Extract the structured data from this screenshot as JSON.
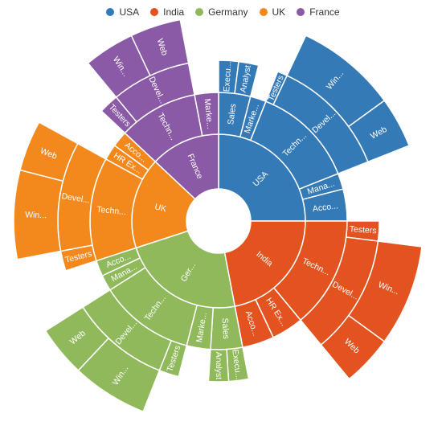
{
  "chart_data": {
    "type": "sunburst",
    "legend": [
      {
        "label": "USA",
        "color": "#337ab7"
      },
      {
        "label": "India",
        "color": "#e3531f"
      },
      {
        "label": "Germany",
        "color": "#8fb95a"
      },
      {
        "label": "UK",
        "color": "#f3891c"
      },
      {
        "label": "France",
        "color": "#8a5aa6"
      }
    ],
    "nodes": [
      {
        "name": "USA",
        "label": "USA",
        "color": "#337ab7",
        "value": 25,
        "children": [
          {
            "name": "Sales",
            "label": "Sales",
            "value": 4,
            "children": [
              {
                "name": "Executive",
                "label": "Execu...",
                "value": 2
              },
              {
                "name": "Analyst",
                "label": "Analyst",
                "value": 2
              }
            ]
          },
          {
            "name": "Marketing",
            "label": "Marke...",
            "value": 2
          },
          {
            "name": "Technical",
            "label": "Techn...",
            "value": 13,
            "children": [
              {
                "name": "Testers",
                "label": "Testers",
                "value": 1
              },
              {
                "name": "Developers",
                "label": "Devel...",
                "value": 12,
                "children": [
                  {
                    "name": "Windows",
                    "label": "Win...",
                    "value": 8
                  },
                  {
                    "name": "Web",
                    "label": "Web",
                    "value": 4
                  }
                ]
              }
            ]
          },
          {
            "name": "Management",
            "label": "Mana...",
            "value": 2
          },
          {
            "name": "Accounts",
            "label": "Acco...",
            "value": 4
          }
        ]
      },
      {
        "name": "India",
        "label": "India",
        "color": "#e3531f",
        "value": 22,
        "children": [
          {
            "name": "Technical",
            "label": "Techn...",
            "value": 14,
            "children": [
              {
                "name": "Testers",
                "label": "Testers",
                "value": 2
              },
              {
                "name": "Developers",
                "label": "Devel...",
                "value": 12,
                "children": [
                  {
                    "name": "Windows",
                    "label": "Win...",
                    "value": 8
                  },
                  {
                    "name": "Web",
                    "label": "Web",
                    "value": 4
                  }
                ]
              }
            ]
          },
          {
            "name": "HR Executives",
            "label": "HR Ex...",
            "value": 4
          },
          {
            "name": "Accounts",
            "label": "Acco...",
            "value": 4
          }
        ]
      },
      {
        "name": "Germany",
        "label": "Ger...",
        "color": "#8fb95a",
        "value": 23,
        "children": [
          {
            "name": "Sales",
            "label": "Sales",
            "value": 4,
            "children": [
              {
                "name": "Executive",
                "label": "Execu...",
                "value": 2
              },
              {
                "name": "Analyst",
                "label": "Analyst",
                "value": 2
              }
            ]
          },
          {
            "name": "Marketing",
            "label": "Marke...",
            "value": 3
          },
          {
            "name": "Technical",
            "label": "Techn...",
            "value": 12,
            "children": [
              {
                "name": "Testers",
                "label": "Testers",
                "value": 2
              },
              {
                "name": "Developers",
                "label": "Devel...",
                "value": 10,
                "children": [
                  {
                    "name": "Windows",
                    "label": "Win...",
                    "value": 6
                  },
                  {
                    "name": "Web",
                    "label": "Web",
                    "value": 4
                  }
                ]
              }
            ]
          },
          {
            "name": "Management",
            "label": "Mana...",
            "value": 2
          },
          {
            "name": "Accounts",
            "label": "Acco...",
            "value": 2
          }
        ]
      },
      {
        "name": "UK",
        "label": "UK",
        "color": "#f3891c",
        "value": 17,
        "children": [
          {
            "name": "Technical",
            "label": "Techn...",
            "value": 13,
            "children": [
              {
                "name": "Testers",
                "label": "Testers",
                "value": 2
              },
              {
                "name": "Developers",
                "label": "Devel...",
                "value": 11,
                "children": [
                  {
                    "name": "Windows",
                    "label": "Win...",
                    "value": 7
                  },
                  {
                    "name": "Web",
                    "label": "Web",
                    "value": 4
                  }
                ]
              }
            ]
          },
          {
            "name": "HR Executives",
            "label": "HR Ex...",
            "value": 2
          },
          {
            "name": "Accounts",
            "label": "Acco...",
            "value": 2
          }
        ]
      },
      {
        "name": "France",
        "label": "France",
        "color": "#8a5aa6",
        "value": 13,
        "children": [
          {
            "name": "Technical",
            "label": "Techn...",
            "value": 10,
            "children": [
              {
                "name": "Testers",
                "label": "Testers",
                "value": 2
              },
              {
                "name": "Developers",
                "label": "Devel...",
                "value": 8,
                "children": [
                  {
                    "name": "Windows",
                    "label": "Win...",
                    "value": 4
                  },
                  {
                    "name": "Web",
                    "label": "Web",
                    "value": 4
                  }
                ]
              }
            ]
          },
          {
            "name": "Marketing",
            "label": "Marke...",
            "value": 3
          }
        ]
      }
    ]
  }
}
